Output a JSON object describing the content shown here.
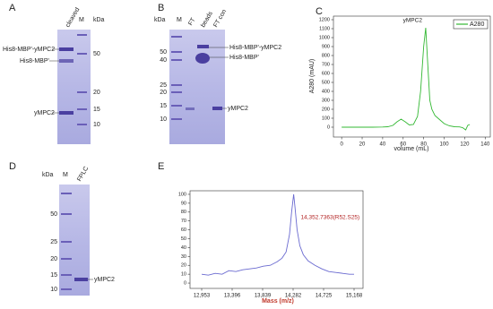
{
  "panel_labels": [
    "A",
    "B",
    "C",
    "D",
    "E"
  ],
  "gel_a": {
    "lanes": [
      "cleaved",
      "M"
    ],
    "unit": "kDa",
    "markers": [
      "50",
      "20",
      "15",
      "10"
    ],
    "bands": [
      "His8-MBP'-yMPC2",
      "His8-MBP'",
      "yMPC2"
    ]
  },
  "gel_b": {
    "lanes": [
      "M",
      "FT",
      "beads",
      "FT con"
    ],
    "unit": "kDa",
    "markers": [
      "50",
      "40",
      "25",
      "20",
      "15",
      "10"
    ],
    "bands": [
      "His8-MBP'-yMPC2",
      "His8-MBP'",
      "yMPC2"
    ]
  },
  "gel_d": {
    "lanes": [
      "M",
      "FPLC"
    ],
    "unit": "kDa",
    "markers": [
      "50",
      "25",
      "20",
      "15",
      "10"
    ],
    "bands": [
      "yMPC2"
    ]
  },
  "chart_data": [
    {
      "type": "line",
      "xlabel": "volume (mL)",
      "ylabel": "A280 (mAU)",
      "annotation": "yMPC2",
      "x": [
        0,
        10,
        20,
        30,
        40,
        45,
        50,
        54,
        58,
        62,
        66,
        70,
        74,
        77,
        80,
        82,
        84,
        86,
        88,
        91,
        95,
        100,
        105,
        110,
        115,
        118,
        121,
        123,
        125
      ],
      "series": [
        {
          "name": "A280",
          "color": "#33b833",
          "values": [
            0,
            0,
            0,
            0,
            2,
            5,
            20,
            60,
            90,
            60,
            25,
            30,
            120,
            400,
            900,
            1110,
            700,
            300,
            200,
            130,
            90,
            40,
            15,
            5,
            3,
            -5,
            -30,
            20,
            30
          ]
        }
      ],
      "xlim": [
        -8,
        145
      ],
      "ylim": [
        -110,
        1240
      ],
      "xticks": [
        0,
        20,
        40,
        60,
        80,
        100,
        120,
        140
      ],
      "yticks": [
        0,
        100,
        200,
        300,
        400,
        500,
        600,
        700,
        800,
        900,
        1000,
        1100,
        1200
      ],
      "legend": "top-right"
    },
    {
      "type": "line",
      "xlabel": "Mass (m/z)",
      "annotation": "14,352.7363(R52.S25)",
      "x": [
        12953,
        13050,
        13150,
        13250,
        13350,
        13450,
        13550,
        13650,
        13750,
        13850,
        13950,
        14050,
        14120,
        14180,
        14230,
        14260,
        14290,
        14310,
        14340,
        14380,
        14430,
        14500,
        14600,
        14700,
        14800,
        14900,
        15000,
        15100,
        15168
      ],
      "series": [
        {
          "color": "#6a6ad0",
          "values": [
            10,
            9,
            11,
            10,
            14,
            13,
            15,
            16,
            17,
            19,
            20,
            24,
            28,
            35,
            55,
            80,
            100,
            85,
            60,
            42,
            32,
            25,
            20,
            16,
            13,
            12,
            11,
            10,
            10
          ]
        }
      ],
      "xlim": [
        12953,
        15168
      ],
      "ylim": [
        -6,
        104
      ],
      "xticks": [
        {
          "value": 12953,
          "label": "12,953"
        },
        {
          "value": 13396,
          "label": "13,396"
        },
        {
          "value": 13839,
          "label": "13,839"
        },
        {
          "value": 14282,
          "label": "14,282"
        },
        {
          "value": 14725,
          "label": "14,725"
        },
        {
          "value": 15168,
          "label": "15,168"
        }
      ],
      "yticks": [
        0,
        10,
        20,
        30,
        40,
        50,
        60,
        70,
        80,
        90,
        100
      ]
    }
  ]
}
